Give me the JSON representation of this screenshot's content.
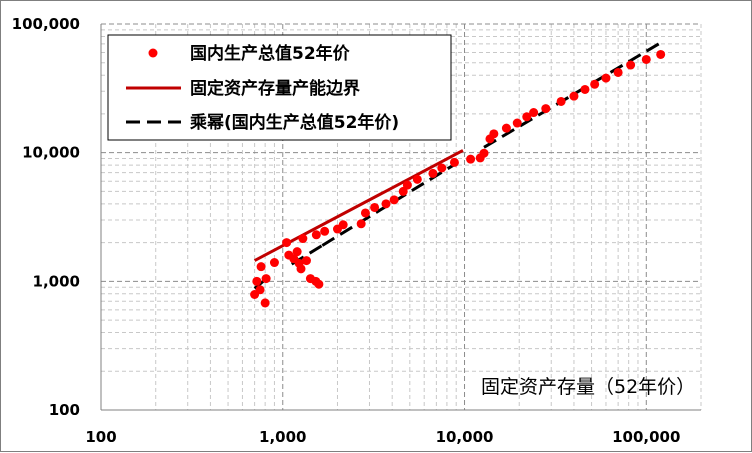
{
  "chart_data": {
    "type": "scatter",
    "x_scale": "log",
    "y_scale": "log",
    "xlim": [
      100,
      200000
    ],
    "ylim": [
      100,
      100000
    ],
    "x_ticks": [
      "100",
      "1,000",
      "10,000",
      "100,000"
    ],
    "y_ticks": [
      "100",
      "1,000",
      "10,000",
      "100,000"
    ],
    "xlabel": "固定资产存量（52年价）",
    "ylabel": "",
    "grid": "major and minor",
    "legend_position": "top-left",
    "series": [
      {
        "name": "国内生产总值52年价",
        "kind": "scatter",
        "color": "#ff0000",
        "points": [
          [
            700,
            790
          ],
          [
            720,
            1000
          ],
          [
            750,
            860
          ],
          [
            760,
            1300
          ],
          [
            800,
            680
          ],
          [
            810,
            1050
          ],
          [
            900,
            1400
          ],
          [
            1050,
            2000
          ],
          [
            1080,
            1600
          ],
          [
            1150,
            1500
          ],
          [
            1200,
            1700
          ],
          [
            1230,
            1380
          ],
          [
            1260,
            1250
          ],
          [
            1290,
            2150
          ],
          [
            1350,
            1450
          ],
          [
            1420,
            1050
          ],
          [
            1520,
            1000
          ],
          [
            1580,
            950
          ],
          [
            1530,
            2300
          ],
          [
            1700,
            2450
          ],
          [
            2000,
            2550
          ],
          [
            2150,
            2750
          ],
          [
            2700,
            2800
          ],
          [
            2850,
            3400
          ],
          [
            3200,
            3750
          ],
          [
            3700,
            4000
          ],
          [
            4100,
            4300
          ],
          [
            4600,
            5000
          ],
          [
            4850,
            5600
          ],
          [
            5500,
            6200
          ],
          [
            6700,
            6900
          ],
          [
            7500,
            7600
          ],
          [
            8800,
            8400
          ],
          [
            10800,
            8900
          ],
          [
            12200,
            9100
          ],
          [
            12800,
            9900
          ],
          [
            13800,
            12800
          ],
          [
            14500,
            14000
          ],
          [
            17000,
            15500
          ],
          [
            19500,
            17000
          ],
          [
            22000,
            19000
          ],
          [
            24000,
            20500
          ],
          [
            28000,
            22000
          ],
          [
            34000,
            25000
          ],
          [
            40000,
            27500
          ],
          [
            46000,
            31000
          ],
          [
            52000,
            34000
          ],
          [
            60000,
            38000
          ],
          [
            70000,
            42000
          ],
          [
            82000,
            48000
          ],
          [
            100000,
            53000
          ],
          [
            120000,
            58000
          ]
        ]
      },
      {
        "name": "固定资产存量产能边界",
        "kind": "line",
        "color": "#c00000",
        "points": [
          [
            700,
            1450
          ],
          [
            9800,
            10400
          ]
        ]
      },
      {
        "name": "乘幂(国内生产总值52年价)",
        "kind": "dashed-line",
        "color": "#000000",
        "segments": [
          [
            [
              700,
              880
            ],
            [
              820,
              1060
            ]
          ],
          [
            [
              1120,
              1360
            ],
            [
              1650,
              1900
            ]
          ],
          [
            [
              1650,
              1900
            ],
            [
              9200,
              8400
            ]
          ],
          [
            [
              12800,
              11000
            ],
            [
              123000,
              73000
            ]
          ]
        ]
      }
    ]
  }
}
